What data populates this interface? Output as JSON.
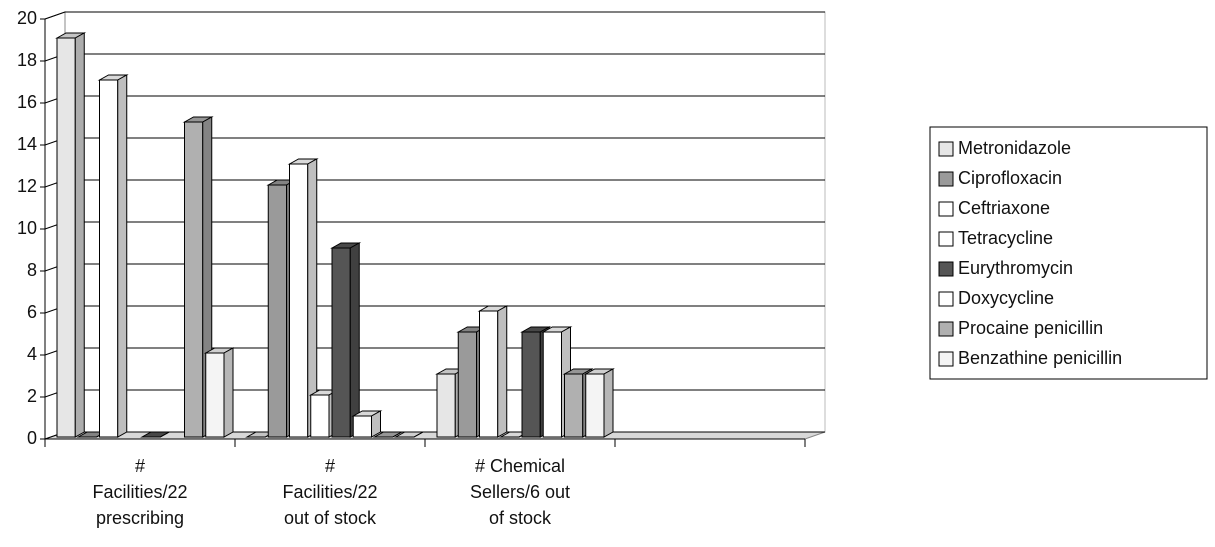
{
  "chart_data": {
    "type": "bar3d",
    "categories": [
      "# Facilities/22 prescribing",
      "# Facilities/22 out of stock",
      "# Chemical Sellers/6 out of stock",
      null
    ],
    "series": [
      {
        "name": "Metronidazole",
        "color": "#e6e6e6",
        "values": [
          19,
          0,
          3,
          null
        ]
      },
      {
        "name": "Ciprofloxacin",
        "color": "#9a9a9a",
        "values": [
          0,
          12,
          5,
          null
        ]
      },
      {
        "name": "Ceftriaxone",
        "color": "#ffffff",
        "values": [
          17,
          13,
          6,
          null
        ]
      },
      {
        "name": "Tetracycline",
        "color": "#ffffff",
        "values": [
          null,
          2,
          0,
          null
        ]
      },
      {
        "name": "Eurythromycin",
        "color": "#555555",
        "values": [
          0,
          9,
          5,
          null
        ]
      },
      {
        "name": "Doxycycline",
        "color": "#ffffff",
        "values": [
          null,
          1,
          5,
          null
        ]
      },
      {
        "name": "Procaine penicillin",
        "color": "#b0b0b0",
        "values": [
          15,
          0,
          3,
          null
        ]
      },
      {
        "name": "Benzathine penicillin",
        "color": "#f4f4f4",
        "values": [
          4,
          0,
          3,
          null
        ]
      }
    ],
    "ylim": [
      0,
      20
    ],
    "yticks": [
      0,
      2,
      4,
      6,
      8,
      10,
      12,
      14,
      16,
      18,
      20
    ],
    "grid": true,
    "legend": "right"
  }
}
